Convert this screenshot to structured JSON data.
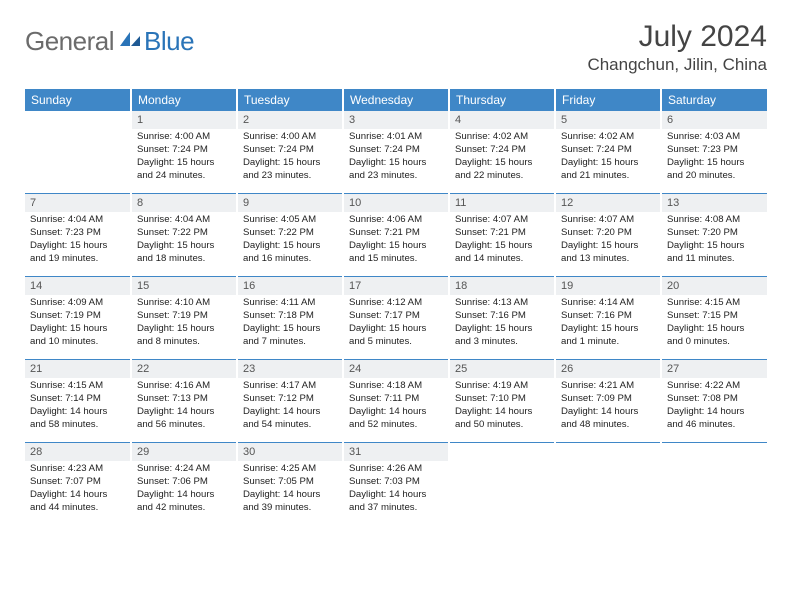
{
  "logo": {
    "text1": "General",
    "text2": "Blue"
  },
  "title": "July 2024",
  "location": "Changchun, Jilin, China",
  "colors": {
    "header_bg": "#3f87c7",
    "daynum_bg": "#eef0f2",
    "rule": "#3f87c7",
    "logo_gray": "#6b6b6b",
    "logo_blue": "#2a74b8"
  },
  "weekdays": [
    "Sunday",
    "Monday",
    "Tuesday",
    "Wednesday",
    "Thursday",
    "Friday",
    "Saturday"
  ],
  "weeks": [
    [
      null,
      {
        "n": "1",
        "sr": "4:00 AM",
        "ss": "7:24 PM",
        "dl": "15 hours and 24 minutes."
      },
      {
        "n": "2",
        "sr": "4:00 AM",
        "ss": "7:24 PM",
        "dl": "15 hours and 23 minutes."
      },
      {
        "n": "3",
        "sr": "4:01 AM",
        "ss": "7:24 PM",
        "dl": "15 hours and 23 minutes."
      },
      {
        "n": "4",
        "sr": "4:02 AM",
        "ss": "7:24 PM",
        "dl": "15 hours and 22 minutes."
      },
      {
        "n": "5",
        "sr": "4:02 AM",
        "ss": "7:24 PM",
        "dl": "15 hours and 21 minutes."
      },
      {
        "n": "6",
        "sr": "4:03 AM",
        "ss": "7:23 PM",
        "dl": "15 hours and 20 minutes."
      }
    ],
    [
      {
        "n": "7",
        "sr": "4:04 AM",
        "ss": "7:23 PM",
        "dl": "15 hours and 19 minutes."
      },
      {
        "n": "8",
        "sr": "4:04 AM",
        "ss": "7:22 PM",
        "dl": "15 hours and 18 minutes."
      },
      {
        "n": "9",
        "sr": "4:05 AM",
        "ss": "7:22 PM",
        "dl": "15 hours and 16 minutes."
      },
      {
        "n": "10",
        "sr": "4:06 AM",
        "ss": "7:21 PM",
        "dl": "15 hours and 15 minutes."
      },
      {
        "n": "11",
        "sr": "4:07 AM",
        "ss": "7:21 PM",
        "dl": "15 hours and 14 minutes."
      },
      {
        "n": "12",
        "sr": "4:07 AM",
        "ss": "7:20 PM",
        "dl": "15 hours and 13 minutes."
      },
      {
        "n": "13",
        "sr": "4:08 AM",
        "ss": "7:20 PM",
        "dl": "15 hours and 11 minutes."
      }
    ],
    [
      {
        "n": "14",
        "sr": "4:09 AM",
        "ss": "7:19 PM",
        "dl": "15 hours and 10 minutes."
      },
      {
        "n": "15",
        "sr": "4:10 AM",
        "ss": "7:19 PM",
        "dl": "15 hours and 8 minutes."
      },
      {
        "n": "16",
        "sr": "4:11 AM",
        "ss": "7:18 PM",
        "dl": "15 hours and 7 minutes."
      },
      {
        "n": "17",
        "sr": "4:12 AM",
        "ss": "7:17 PM",
        "dl": "15 hours and 5 minutes."
      },
      {
        "n": "18",
        "sr": "4:13 AM",
        "ss": "7:16 PM",
        "dl": "15 hours and 3 minutes."
      },
      {
        "n": "19",
        "sr": "4:14 AM",
        "ss": "7:16 PM",
        "dl": "15 hours and 1 minute."
      },
      {
        "n": "20",
        "sr": "4:15 AM",
        "ss": "7:15 PM",
        "dl": "15 hours and 0 minutes."
      }
    ],
    [
      {
        "n": "21",
        "sr": "4:15 AM",
        "ss": "7:14 PM",
        "dl": "14 hours and 58 minutes."
      },
      {
        "n": "22",
        "sr": "4:16 AM",
        "ss": "7:13 PM",
        "dl": "14 hours and 56 minutes."
      },
      {
        "n": "23",
        "sr": "4:17 AM",
        "ss": "7:12 PM",
        "dl": "14 hours and 54 minutes."
      },
      {
        "n": "24",
        "sr": "4:18 AM",
        "ss": "7:11 PM",
        "dl": "14 hours and 52 minutes."
      },
      {
        "n": "25",
        "sr": "4:19 AM",
        "ss": "7:10 PM",
        "dl": "14 hours and 50 minutes."
      },
      {
        "n": "26",
        "sr": "4:21 AM",
        "ss": "7:09 PM",
        "dl": "14 hours and 48 minutes."
      },
      {
        "n": "27",
        "sr": "4:22 AM",
        "ss": "7:08 PM",
        "dl": "14 hours and 46 minutes."
      }
    ],
    [
      {
        "n": "28",
        "sr": "4:23 AM",
        "ss": "7:07 PM",
        "dl": "14 hours and 44 minutes."
      },
      {
        "n": "29",
        "sr": "4:24 AM",
        "ss": "7:06 PM",
        "dl": "14 hours and 42 minutes."
      },
      {
        "n": "30",
        "sr": "4:25 AM",
        "ss": "7:05 PM",
        "dl": "14 hours and 39 minutes."
      },
      {
        "n": "31",
        "sr": "4:26 AM",
        "ss": "7:03 PM",
        "dl": "14 hours and 37 minutes."
      },
      null,
      null,
      null
    ]
  ],
  "labels": {
    "sunrise": "Sunrise: ",
    "sunset": "Sunset: ",
    "daylight": "Daylight: "
  }
}
